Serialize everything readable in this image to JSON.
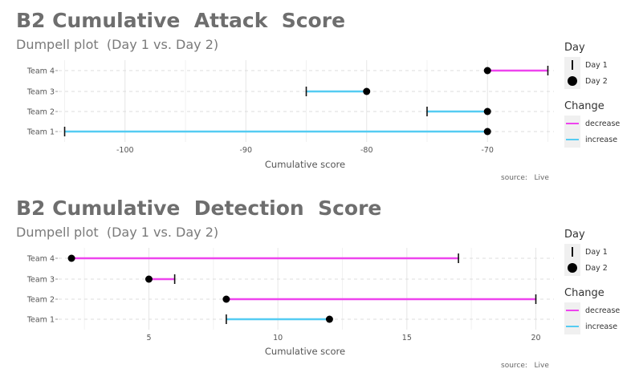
{
  "charts": [
    {
      "title": "B2 Cumulative  Attack  Score",
      "subtitle": "Dumpell plot  (Day 1 vs. Day 2)",
      "source": "source:   Live"
    },
    {
      "title": "B2 Cumulative  Detection  Score",
      "subtitle": "Dumpell plot  (Day 1 vs. Day 2)",
      "source": "source:   Live"
    }
  ],
  "legend": {
    "day_title": "Day",
    "day_items": [
      "Day 1",
      "Day 2"
    ],
    "change_title": "Change",
    "change_items": [
      "decrease",
      "increase"
    ]
  },
  "colors": {
    "decrease": "#ee44ee",
    "increase": "#55ccf2",
    "point": "#000000",
    "grid": "#e6e6e6"
  },
  "chart_data": [
    {
      "type": "dumbbell",
      "title": "B2 Cumulative  Attack  Score",
      "xlabel": "Cumulative score",
      "ylabel": "",
      "categories": [
        "Team 1",
        "Team 2",
        "Team 3",
        "Team 4"
      ],
      "xlim": [
        -105.5,
        -64.5
      ],
      "xticks": [
        -100,
        -90,
        -80,
        -70
      ],
      "grid": true,
      "series": [
        {
          "name": "Day 1",
          "values": [
            -105,
            -75,
            -85,
            -65
          ]
        },
        {
          "name": "Day 2",
          "values": [
            -70,
            -70,
            -80,
            -70
          ]
        }
      ],
      "change": [
        "increase",
        "increase",
        "increase",
        "decrease"
      ]
    },
    {
      "type": "dumbbell",
      "title": "B2 Cumulative  Detection  Score",
      "xlabel": "Cumulative score",
      "ylabel": "",
      "categories": [
        "Team 1",
        "Team 2",
        "Team 3",
        "Team 4"
      ],
      "xlim": [
        1.5,
        20.7
      ],
      "xticks": [
        5,
        10,
        15,
        20
      ],
      "grid": true,
      "series": [
        {
          "name": "Day 1",
          "values": [
            8,
            20,
            6,
            17
          ]
        },
        {
          "name": "Day 2",
          "values": [
            12,
            8,
            5,
            2
          ]
        }
      ],
      "change": [
        "increase",
        "decrease",
        "decrease",
        "decrease"
      ]
    }
  ]
}
